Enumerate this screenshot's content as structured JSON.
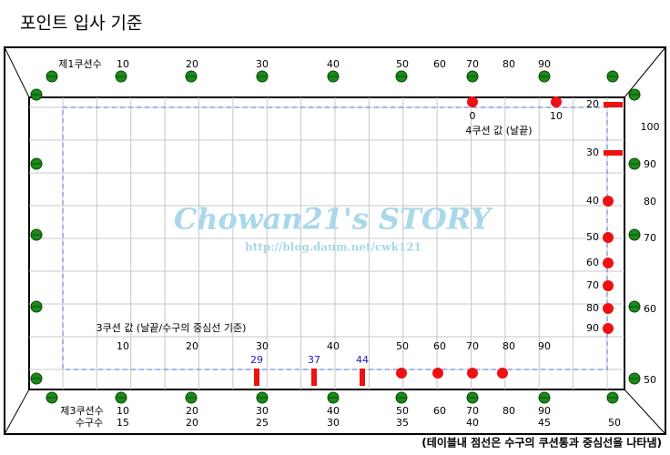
{
  "title": "포인트 입사 기준",
  "watermark": {
    "title": "Chowan21's STORY",
    "url": "http://blog.daum.net/cwk121"
  },
  "top_rail": {
    "label": "제1쿠션수",
    "values": [
      10,
      20,
      30,
      40,
      50,
      60,
      70,
      80,
      90
    ]
  },
  "fourth_cushion": {
    "label": "4쿠션 값 (날끝)",
    "values": [
      0,
      10
    ]
  },
  "right_inner": {
    "values": [
      20,
      30,
      40,
      50,
      60,
      70,
      80,
      90
    ]
  },
  "right_rail": {
    "values": [
      100,
      90,
      80,
      70,
      60,
      50
    ]
  },
  "third_cushion": {
    "label": "3쿠션 값 (날끝/수구의 중심선 기준)",
    "values": [
      10,
      20,
      30,
      40,
      50,
      60,
      70,
      80,
      90
    ],
    "cue_values": [
      29,
      37,
      44
    ]
  },
  "bottom_rail": {
    "label": "제3쿠션수",
    "values": [
      10,
      20,
      30,
      40,
      50,
      60,
      70,
      80,
      90
    ],
    "cue_label": "수구수",
    "cue_values": [
      15,
      20,
      25,
      30,
      35,
      40,
      45,
      50
    ]
  },
  "footnote": "(테이블내 점선은 수구의 쿠션통과 중심선을 나타냄)"
}
